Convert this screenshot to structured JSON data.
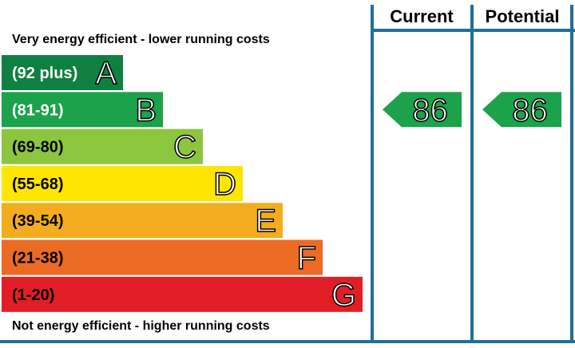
{
  "header": {
    "top_note": "Very energy efficient - lower running costs",
    "bottom_note": "Not energy efficient - higher running costs",
    "current": "Current",
    "potential": "Potential"
  },
  "bands": [
    {
      "range": "(92 plus)",
      "letter": "A",
      "color": "#0f8040"
    },
    {
      "range": "(81-91)",
      "letter": "B",
      "color": "#1ba24a"
    },
    {
      "range": "(69-80)",
      "letter": "C",
      "color": "#8cc63e"
    },
    {
      "range": "(55-68)",
      "letter": "D",
      "color": "#ffe600"
    },
    {
      "range": "(39-54)",
      "letter": "E",
      "color": "#f4ac1f"
    },
    {
      "range": "(21-38)",
      "letter": "F",
      "color": "#ec6b24"
    },
    {
      "range": "(1-20)",
      "letter": "G",
      "color": "#e11e25"
    }
  ],
  "ratings": {
    "current": {
      "value": "86",
      "band": 1
    },
    "potential": {
      "value": "86",
      "band": 1
    }
  }
}
